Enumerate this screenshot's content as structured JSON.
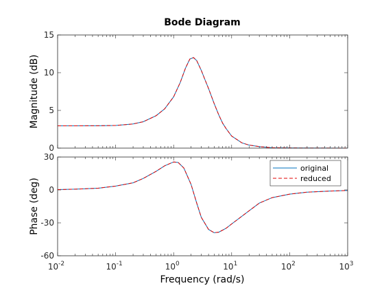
{
  "chart_data": {
    "type": "line",
    "title": "Bode Diagram",
    "xlabel": "Frequency  (rad/s)",
    "xscale": "log",
    "xlim": [
      0.01,
      1000
    ],
    "x_ticks": [
      {
        "base": "10",
        "exp": "-2"
      },
      {
        "base": "10",
        "exp": "-1"
      },
      {
        "base": "10",
        "exp": "0"
      },
      {
        "base": "10",
        "exp": "1"
      },
      {
        "base": "10",
        "exp": "2"
      },
      {
        "base": "10",
        "exp": "3"
      }
    ],
    "grid": false,
    "legend_position": "top-right",
    "colors": {
      "original": "#0072BD",
      "reduced": "#E00000"
    },
    "series_names": [
      "original",
      "reduced"
    ],
    "subplots": [
      {
        "id": "magnitude",
        "ylabel": "Magnitude (dB)",
        "ylim": [
          0,
          15
        ],
        "yticks": [
          0,
          5,
          10,
          15
        ],
        "ytick_labels": [
          "0",
          "5",
          "10",
          "15"
        ],
        "series": [
          {
            "name": "original",
            "x": [
              0.01,
              0.02,
              0.05,
              0.1,
              0.2,
              0.3,
              0.5,
              0.7,
              1.0,
              1.3,
              1.6,
              1.9,
              2.2,
              2.5,
              3.0,
              3.5,
              4.0,
              5.0,
              6.0,
              7.0,
              8.0,
              10,
              15,
              20,
              30,
              50,
              100,
              1000
            ],
            "y": [
              2.95,
              2.95,
              2.97,
              3.0,
              3.2,
              3.5,
              4.3,
              5.2,
              6.8,
              8.7,
              10.6,
              11.8,
              12.0,
              11.6,
              10.3,
              9.0,
              7.9,
              5.9,
              4.4,
              3.3,
              2.6,
              1.6,
              0.7,
              0.4,
              0.2,
              0.05,
              0.02,
              0.0
            ]
          },
          {
            "name": "reduced",
            "x": [
              0.01,
              0.02,
              0.05,
              0.1,
              0.2,
              0.3,
              0.5,
              0.7,
              1.0,
              1.3,
              1.6,
              1.9,
              2.2,
              2.5,
              3.0,
              3.5,
              4.0,
              5.0,
              6.0,
              7.0,
              8.0,
              10,
              15,
              20,
              30,
              50,
              100,
              1000
            ],
            "y": [
              2.95,
              2.95,
              2.97,
              3.0,
              3.2,
              3.5,
              4.3,
              5.2,
              6.8,
              8.7,
              10.6,
              11.8,
              12.0,
              11.6,
              10.3,
              9.0,
              7.9,
              5.9,
              4.4,
              3.3,
              2.6,
              1.6,
              0.7,
              0.4,
              0.2,
              0.05,
              0.02,
              0.0
            ]
          }
        ]
      },
      {
        "id": "phase",
        "ylabel": "Phase (deg)",
        "ylim": [
          -60,
          30
        ],
        "yticks": [
          -60,
          -30,
          0,
          30
        ],
        "ytick_labels": [
          "-60",
          "-30",
          "0",
          "30"
        ],
        "series": [
          {
            "name": "original",
            "x": [
              0.01,
              0.02,
              0.05,
              0.1,
              0.2,
              0.3,
              0.5,
              0.7,
              1.0,
              1.2,
              1.5,
              2.0,
              2.5,
              3.0,
              4.0,
              5.0,
              6.0,
              8.0,
              10,
              15,
              20,
              30,
              50,
              100,
              200,
              500,
              1000
            ],
            "y": [
              0.3,
              0.7,
              1.6,
              3.5,
              6.5,
              10.5,
              17.0,
              22.0,
              25.5,
              25.0,
              20.0,
              5.0,
              -12.0,
              -25.0,
              -36.0,
              -39.0,
              -38.5,
              -35.0,
              -31.0,
              -24.0,
              -19.0,
              -12.0,
              -7.0,
              -3.8,
              -2.0,
              -1.0,
              -0.5
            ]
          },
          {
            "name": "reduced",
            "x": [
              0.01,
              0.02,
              0.05,
              0.1,
              0.2,
              0.3,
              0.5,
              0.7,
              1.0,
              1.2,
              1.5,
              2.0,
              2.5,
              3.0,
              4.0,
              5.0,
              6.0,
              8.0,
              10,
              15,
              20,
              30,
              50,
              100,
              200,
              500,
              1000
            ],
            "y": [
              0.3,
              0.7,
              1.6,
              3.5,
              6.5,
              10.5,
              17.0,
              22.0,
              25.5,
              25.0,
              20.0,
              5.0,
              -12.0,
              -25.0,
              -36.0,
              -39.0,
              -38.5,
              -35.0,
              -31.0,
              -24.0,
              -19.0,
              -12.0,
              -7.0,
              -3.8,
              -2.0,
              -1.0,
              -0.5
            ]
          }
        ]
      }
    ]
  }
}
